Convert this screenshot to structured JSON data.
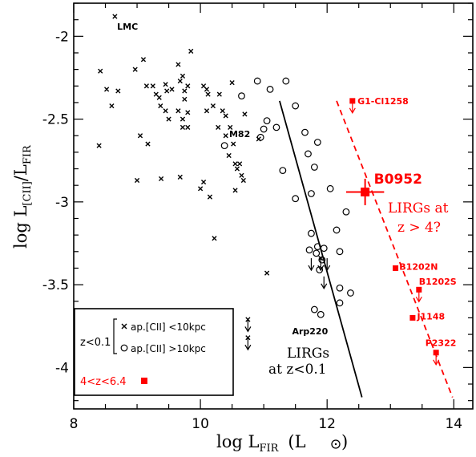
{
  "chart_data": {
    "type": "scatter",
    "xlim": [
      8,
      14.3
    ],
    "ylim": [
      -4.25,
      -1.8
    ],
    "x_ticks": [
      8,
      10,
      12,
      14
    ],
    "y_ticks": [
      -2,
      -2.5,
      -3,
      -3.5,
      -4
    ],
    "x_minor_step": 0.5,
    "y_minor_step": 0.1,
    "colors": {
      "local": "#000000",
      "highz": "#ff0000"
    },
    "xlabel": {
      "log": "log L",
      "sub": "FIR",
      "unit_open": "(L",
      "unit_close": ")"
    },
    "ylabel": {
      "log": "log L",
      "sub1": "[CII]",
      "slash": "/L",
      "sub2": "FIR"
    },
    "series": [
      {
        "name": "ap.[CII] <10kpc",
        "marker": "x",
        "color": "#000000",
        "points": [
          [
            8.65,
            -1.88
          ],
          [
            8.42,
            -2.21
          ],
          [
            8.52,
            -2.32
          ],
          [
            8.6,
            -2.42
          ],
          [
            8.7,
            -2.33
          ],
          [
            8.97,
            -2.2
          ],
          [
            9.1,
            -2.14
          ],
          [
            9.15,
            -2.3
          ],
          [
            9.25,
            -2.3
          ],
          [
            9.3,
            -2.35
          ],
          [
            9.35,
            -2.37
          ],
          [
            9.37,
            -2.42
          ],
          [
            9.45,
            -2.29
          ],
          [
            9.47,
            -2.33
          ],
          [
            9.55,
            -2.32
          ],
          [
            9.65,
            -2.17
          ],
          [
            9.68,
            -2.27
          ],
          [
            9.72,
            -2.24
          ],
          [
            9.75,
            -2.33
          ],
          [
            9.8,
            -2.3
          ],
          [
            9.75,
            -2.38
          ],
          [
            9.8,
            -2.46
          ],
          [
            9.85,
            -2.09
          ],
          [
            9.72,
            -2.5
          ],
          [
            9.65,
            -2.45
          ],
          [
            9.45,
            -2.45
          ],
          [
            9.5,
            -2.5
          ],
          [
            9.72,
            -2.55
          ],
          [
            9.8,
            -2.55
          ],
          [
            9.05,
            -2.6
          ],
          [
            9.17,
            -2.65
          ],
          [
            8.4,
            -2.66
          ],
          [
            9.0,
            -2.87
          ],
          [
            9.38,
            -2.86
          ],
          [
            9.68,
            -2.85
          ],
          [
            10.05,
            -2.3
          ],
          [
            10.1,
            -2.32
          ],
          [
            10.12,
            -2.35
          ],
          [
            10.1,
            -2.45
          ],
          [
            10.2,
            -2.42
          ],
          [
            10.3,
            -2.35
          ],
          [
            10.35,
            -2.45
          ],
          [
            10.28,
            -2.55
          ],
          [
            10.4,
            -2.48
          ],
          [
            10.4,
            -2.6
          ],
          [
            10.47,
            -2.55
          ],
          [
            10.5,
            -2.28
          ],
          [
            10.45,
            -2.72
          ],
          [
            10.55,
            -2.77
          ],
          [
            10.52,
            -2.65
          ],
          [
            10.58,
            -2.8
          ],
          [
            10.62,
            -2.77
          ],
          [
            10.65,
            -2.84
          ],
          [
            10.68,
            -2.87
          ],
          [
            10.7,
            -2.47
          ],
          [
            10.92,
            -2.62
          ],
          [
            10.55,
            -2.93
          ],
          [
            10.0,
            -2.92
          ],
          [
            10.05,
            -2.88
          ],
          [
            10.15,
            -2.97
          ],
          [
            10.22,
            -3.22
          ],
          [
            11.05,
            -3.43
          ]
        ]
      },
      {
        "name": "ap.[CII] >10kpc",
        "marker": "o",
        "color": "#000000",
        "points": [
          [
            10.38,
            -2.66
          ],
          [
            10.65,
            -2.36
          ],
          [
            10.9,
            -2.27
          ],
          [
            11.1,
            -2.32
          ],
          [
            11.2,
            -2.55
          ],
          [
            11.05,
            -2.51
          ],
          [
            11.0,
            -2.56
          ],
          [
            10.95,
            -2.61
          ],
          [
            11.3,
            -2.81
          ],
          [
            11.35,
            -2.27
          ],
          [
            11.5,
            -2.42
          ],
          [
            11.65,
            -2.58
          ],
          [
            11.7,
            -2.71
          ],
          [
            11.8,
            -2.79
          ],
          [
            11.85,
            -2.64
          ],
          [
            12.05,
            -2.92
          ],
          [
            12.15,
            -3.17
          ],
          [
            12.3,
            -3.06
          ],
          [
            11.5,
            -2.98
          ],
          [
            11.75,
            -2.95
          ],
          [
            11.75,
            -3.19
          ],
          [
            11.72,
            -3.29
          ],
          [
            11.85,
            -3.27
          ],
          [
            11.95,
            -3.28
          ],
          [
            11.88,
            -3.41
          ],
          [
            11.92,
            -3.35
          ],
          [
            11.83,
            -3.31
          ],
          [
            12.2,
            -3.3
          ],
          [
            12.2,
            -3.52
          ],
          [
            12.2,
            -3.61
          ],
          [
            12.37,
            -3.55
          ],
          [
            11.9,
            -3.68
          ],
          [
            11.8,
            -3.65
          ]
        ]
      },
      {
        "name": "4<z<6.4",
        "marker": "square",
        "color": "#ff0000",
        "points": [
          [
            12.6,
            -2.94
          ],
          [
            13.08,
            -3.4
          ],
          [
            13.35,
            -3.7
          ]
        ]
      }
    ],
    "upper_limits": [
      {
        "x": 10.75,
        "y": -3.71,
        "color": "#000000",
        "marker": "x"
      },
      {
        "x": 10.75,
        "y": -3.82,
        "color": "#000000",
        "marker": "x"
      },
      {
        "x": 11.75,
        "y": -3.34,
        "color": "#000000",
        "marker": "none"
      },
      {
        "x": 11.9,
        "y": -3.34,
        "color": "#000000",
        "marker": "x"
      },
      {
        "x": 12.0,
        "y": -3.34,
        "color": "#000000",
        "marker": "none"
      },
      {
        "x": 11.95,
        "y": -3.45,
        "color": "#000000",
        "marker": "none"
      },
      {
        "x": 12.4,
        "y": -2.39,
        "color": "#ff0000",
        "marker": "square"
      },
      {
        "x": 13.45,
        "y": -3.53,
        "color": "#ff0000",
        "marker": "square"
      },
      {
        "x": 13.72,
        "y": -3.91,
        "color": "#ff0000",
        "marker": "square"
      }
    ],
    "error_bars": [
      {
        "x": 12.6,
        "y": -2.94,
        "xerr": 0.3,
        "yerr": 0.08,
        "color": "#ff0000"
      }
    ],
    "lines": [
      {
        "style": "solid",
        "color": "#000000",
        "points": [
          [
            11.25,
            -2.39
          ],
          [
            12.55,
            -4.18
          ]
        ]
      },
      {
        "style": "dashed",
        "color": "#ff0000",
        "points": [
          [
            12.15,
            -2.39
          ],
          [
            13.98,
            -4.18
          ]
        ]
      }
    ],
    "annotations": [
      {
        "text": "LMC",
        "x": 8.85,
        "y": -1.94,
        "color": "#000000",
        "size": "small"
      },
      {
        "text": "M82",
        "x": 10.62,
        "y": -2.59,
        "color": "#000000",
        "size": "small"
      },
      {
        "text": "Arp220",
        "x": 11.73,
        "y": -3.78,
        "color": "#000000",
        "size": "small"
      },
      {
        "text": "G1-Cl1258",
        "x": 12.48,
        "y": -2.39,
        "color": "#ff0000",
        "size": "small",
        "anchor": "start"
      },
      {
        "text": "B0952",
        "x": 12.74,
        "y": -2.86,
        "color": "#ff0000",
        "size": "large",
        "anchor": "start"
      },
      {
        "text": "B1202N",
        "x": 13.14,
        "y": -3.39,
        "color": "#ff0000",
        "size": "small",
        "anchor": "start"
      },
      {
        "text": "B1202S",
        "x": 13.45,
        "y": -3.48,
        "color": "#ff0000",
        "size": "small",
        "anchor": "start"
      },
      {
        "text": "J1148",
        "x": 13.42,
        "y": -3.69,
        "color": "#ff0000",
        "size": "small",
        "anchor": "start"
      },
      {
        "text": "P2322",
        "x": 13.55,
        "y": -3.85,
        "color": "#ff0000",
        "size": "small",
        "anchor": "start"
      }
    ],
    "region_labels": {
      "local_line1": "LIRGs",
      "local_line2": "at z<0.1",
      "highz_line1": "LIRGs at",
      "highz_line2": "z > 4?"
    },
    "legend": {
      "position": "bottom-left",
      "group_label": "z<0.1",
      "item_small": "ap.[CII] <10kpc",
      "item_large": "ap.[CII] >10kpc",
      "highz_label": "4<z<6.4"
    }
  }
}
